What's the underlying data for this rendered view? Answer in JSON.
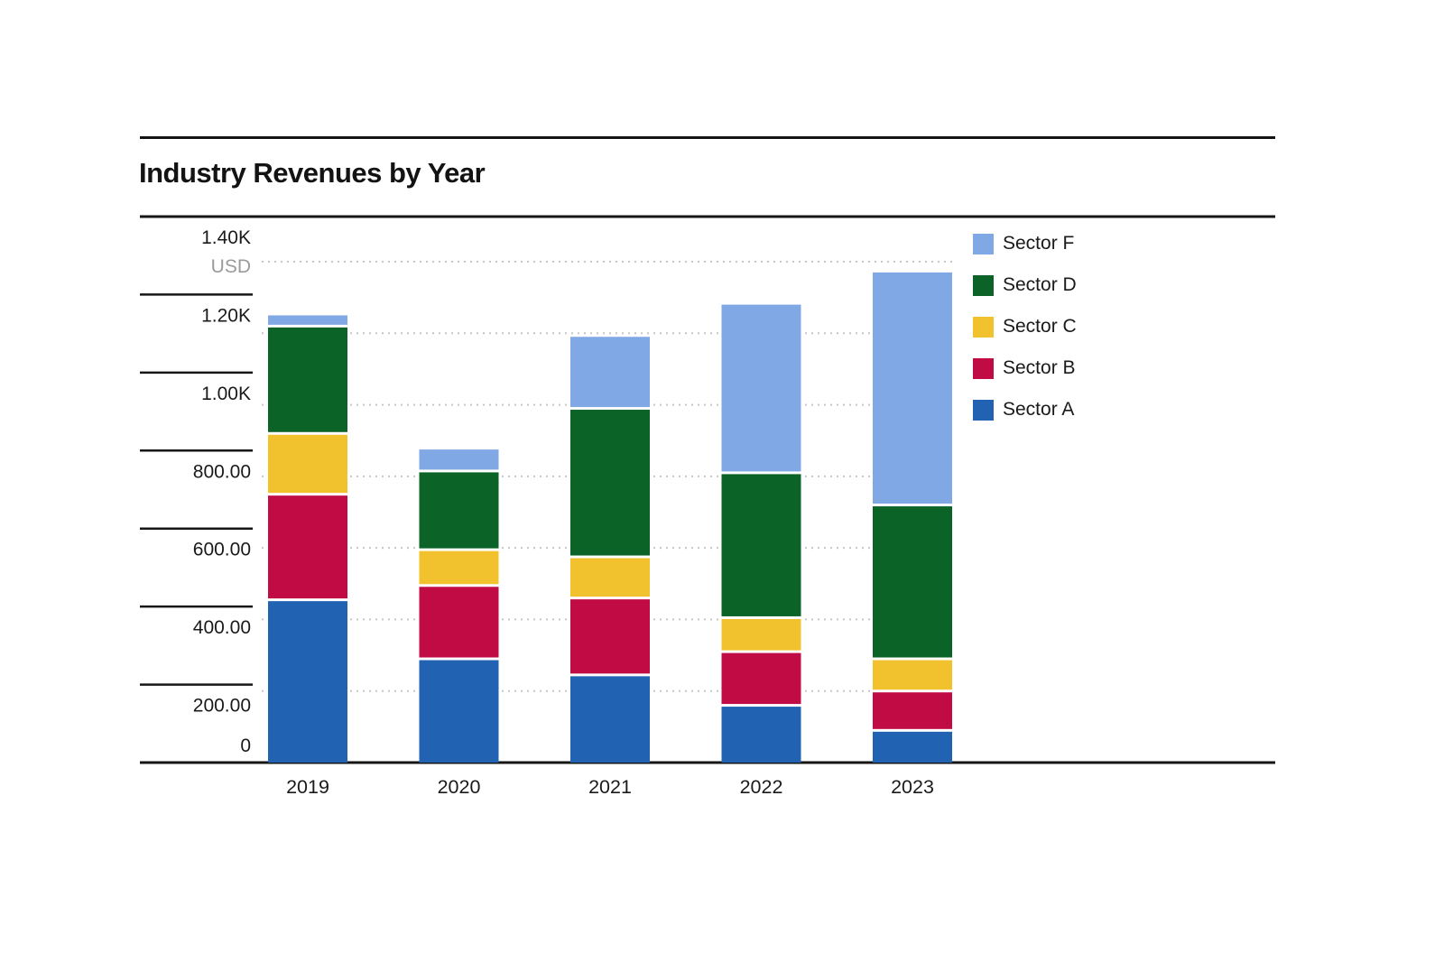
{
  "chart_data": {
    "type": "bar",
    "stacked": true,
    "title": "Industry Revenues by Year",
    "unit": "USD",
    "categories": [
      "2019",
      "2020",
      "2021",
      "2022",
      "2023"
    ],
    "series": [
      {
        "name": "Sector A",
        "color": "#2163B2",
        "values": [
          455,
          290,
          245,
          160,
          90
        ]
      },
      {
        "name": "Sector B",
        "color": "#C10B44",
        "values": [
          295,
          205,
          215,
          150,
          110
        ]
      },
      {
        "name": "Sector C",
        "color": "#F2C12E",
        "values": [
          170,
          100,
          115,
          95,
          90
        ]
      },
      {
        "name": "Sector D",
        "color": "#0B6327",
        "values": [
          300,
          220,
          415,
          405,
          430
        ]
      },
      {
        "name": "Sector F",
        "color": "#7FA8E5",
        "values": [
          30,
          60,
          200,
          470,
          650
        ]
      }
    ],
    "totals": [
      1250,
      875,
      1190,
      1280,
      1370
    ],
    "legend": {
      "position": "right",
      "order": [
        "Sector F",
        "Sector D",
        "Sector C",
        "Sector B",
        "Sector A"
      ]
    },
    "y_axis": {
      "range": [
        0,
        1400
      ],
      "grid": true,
      "unit_label": "USD",
      "ticks": [
        {
          "value": 0,
          "label": "0"
        },
        {
          "value": 200,
          "label": "200.00"
        },
        {
          "value": 400,
          "label": "400.00"
        },
        {
          "value": 600,
          "label": "600.00"
        },
        {
          "value": 800,
          "label": "800.00"
        },
        {
          "value": 1000,
          "label": "1.00K"
        },
        {
          "value": 1200,
          "label": "1.20K"
        },
        {
          "value": 1400,
          "label": "1.40K"
        }
      ]
    },
    "x_axis": {
      "labels": [
        "2019",
        "2020",
        "2021",
        "2022",
        "2023"
      ]
    }
  },
  "style": {
    "frame_color": "#161616",
    "gridline_color": "#c6c6c6",
    "tick_text_color": "#1a1a1a",
    "unit_text_color": "#9b9b9b",
    "background": "#ffffff"
  }
}
